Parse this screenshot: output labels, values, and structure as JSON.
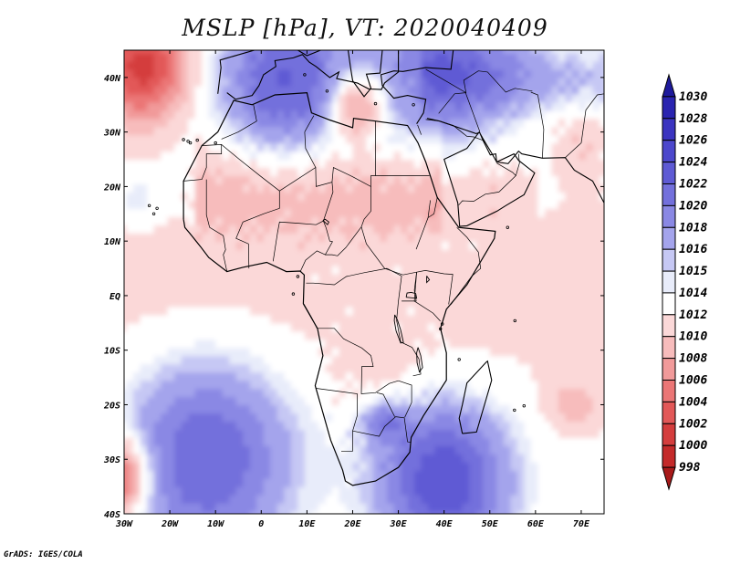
{
  "title": "MSLP [hPa], VT: 2020040409",
  "credit": "GrADS: IGES/COLA",
  "map": {
    "lon_range": [
      -30,
      75
    ],
    "lat_range": [
      -40,
      45
    ],
    "lon_ticks": [
      {
        "value": -30,
        "label": "30W"
      },
      {
        "value": -20,
        "label": "20W"
      },
      {
        "value": -10,
        "label": "10W"
      },
      {
        "value": 0,
        "label": "0"
      },
      {
        "value": 10,
        "label": "10E"
      },
      {
        "value": 20,
        "label": "20E"
      },
      {
        "value": 30,
        "label": "30E"
      },
      {
        "value": 40,
        "label": "40E"
      },
      {
        "value": 50,
        "label": "50E"
      },
      {
        "value": 60,
        "label": "60E"
      },
      {
        "value": 70,
        "label": "70E"
      }
    ],
    "lat_ticks": [
      {
        "value": 40,
        "label": "40N"
      },
      {
        "value": 30,
        "label": "30N"
      },
      {
        "value": 20,
        "label": "20N"
      },
      {
        "value": 10,
        "label": "10N"
      },
      {
        "value": 0,
        "label": "EQ"
      },
      {
        "value": -10,
        "label": "10S"
      },
      {
        "value": -20,
        "label": "20S"
      },
      {
        "value": -30,
        "label": "30S"
      },
      {
        "value": -40,
        "label": "40S"
      }
    ]
  },
  "colorbar": {
    "levels": [
      "1030",
      "1028",
      "1026",
      "1024",
      "1022",
      "1020",
      "1018",
      "1016",
      "1015",
      "1014",
      "1012",
      "1010",
      "1008",
      "1006",
      "1004",
      "1002",
      "1000",
      "998"
    ],
    "colors": [
      "#1e1a9c",
      "#2a24b0",
      "#3b34c0",
      "#4c47cc",
      "#5e5ad4",
      "#7370dc",
      "#8a88e4",
      "#a4a4ec",
      "#c6c8f4",
      "#e8ecfa",
      "#ffffff",
      "#fbd8d8",
      "#f7bcbc",
      "#f19a9a",
      "#eb7676",
      "#e25858",
      "#d43d3d",
      "#c42a2a",
      "#a81a1a"
    ]
  },
  "pressure_systems": [
    {
      "name": "azores-high-edge",
      "lon": -26,
      "lat": 42,
      "value": 1001,
      "spread": 7
    },
    {
      "name": "libya-low",
      "lon": 21,
      "lat": 35,
      "value": 1004,
      "spread": 4
    },
    {
      "name": "south-atlantic-high",
      "lon": -12,
      "lat": -30,
      "value": 1022,
      "spread": 13
    },
    {
      "name": "indian-ocean-high",
      "lon": 40,
      "lat": -34,
      "value": 1024,
      "spread": 10
    },
    {
      "name": "se-atlantic-low",
      "lon": -32,
      "lat": -33,
      "value": 1000,
      "spread": 5
    },
    {
      "name": "mediterranean-high",
      "lon": 5,
      "lat": 40,
      "value": 1022,
      "spread": 10
    },
    {
      "name": "black-sea-high",
      "lon": 40,
      "lat": 43,
      "value": 1020,
      "spread": 12
    }
  ]
}
